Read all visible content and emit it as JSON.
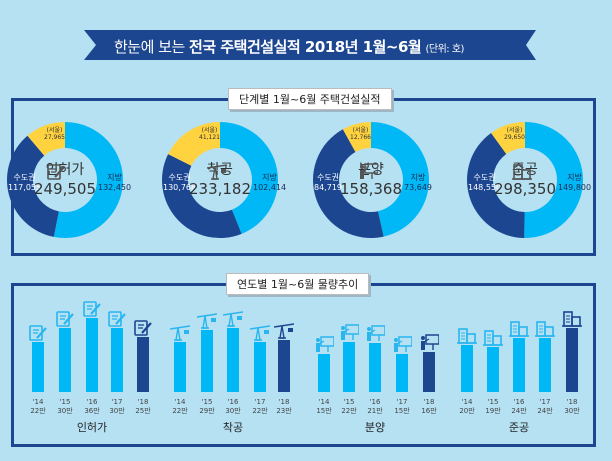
{
  "title": {
    "prefix": "한눈에 보는 ",
    "bold": "전국 주택건설실적 2018년 1월~6월",
    "unit": "(단위: 호)"
  },
  "colors": {
    "background": "#b5e1f3",
    "dark_blue": "#1d4690",
    "light_blue": "#00b8f5",
    "seoul_yellow": "#ffd23f"
  },
  "stage_panel": {
    "label": "단계별 1월~6월 주택건설실적",
    "region_labels": {
      "capital": "수도권",
      "provinces": "지방",
      "seoul": "(서울)"
    },
    "stages": [
      {
        "name": "인허가",
        "icon": "document-pen-icon",
        "total": "249,505",
        "capital": "117,055",
        "provinces": "132,450",
        "seoul": "27,965",
        "capital_value": 117055,
        "provinces_value": 132450,
        "seoul_value": 27965
      },
      {
        "name": "착공",
        "icon": "crane-icon",
        "total": "233,182",
        "capital": "130,768",
        "provinces": "102,414",
        "seoul": "41,121",
        "capital_value": 130768,
        "provinces_value": 102414,
        "seoul_value": 41121
      },
      {
        "name": "분양",
        "icon": "presenter-board-icon",
        "total": "158,368",
        "capital": "84,719",
        "provinces": "73,649",
        "seoul": "12,766",
        "capital_value": 84719,
        "provinces_value": 73649,
        "seoul_value": 12766
      },
      {
        "name": "준공",
        "icon": "buildings-icon",
        "total": "298,350",
        "capital": "148,550",
        "provinces": "149,800",
        "seoul": "29,650",
        "capital_value": 148550,
        "provinces_value": 149800,
        "seoul_value": 29650
      }
    ]
  },
  "trend_panel": {
    "label": "연도별 1월~6월 물량추이",
    "chart_data": {
      "type": "bar",
      "categories": [
        "'14",
        "'15",
        "'16",
        "'17",
        "'18"
      ],
      "unit": "만",
      "groups": [
        {
          "name": "인허가",
          "icon": "document-pen-icon",
          "values": [
            22,
            30,
            36,
            30,
            25
          ]
        },
        {
          "name": "착공",
          "icon": "crane-icon",
          "values": [
            22,
            29,
            30,
            22,
            23
          ]
        },
        {
          "name": "분양",
          "icon": "presenter-board-icon",
          "values": [
            15,
            22,
            21,
            15,
            16
          ]
        },
        {
          "name": "준공",
          "icon": "buildings-icon",
          "values": [
            20,
            19,
            24,
            24,
            30
          ]
        }
      ]
    }
  }
}
